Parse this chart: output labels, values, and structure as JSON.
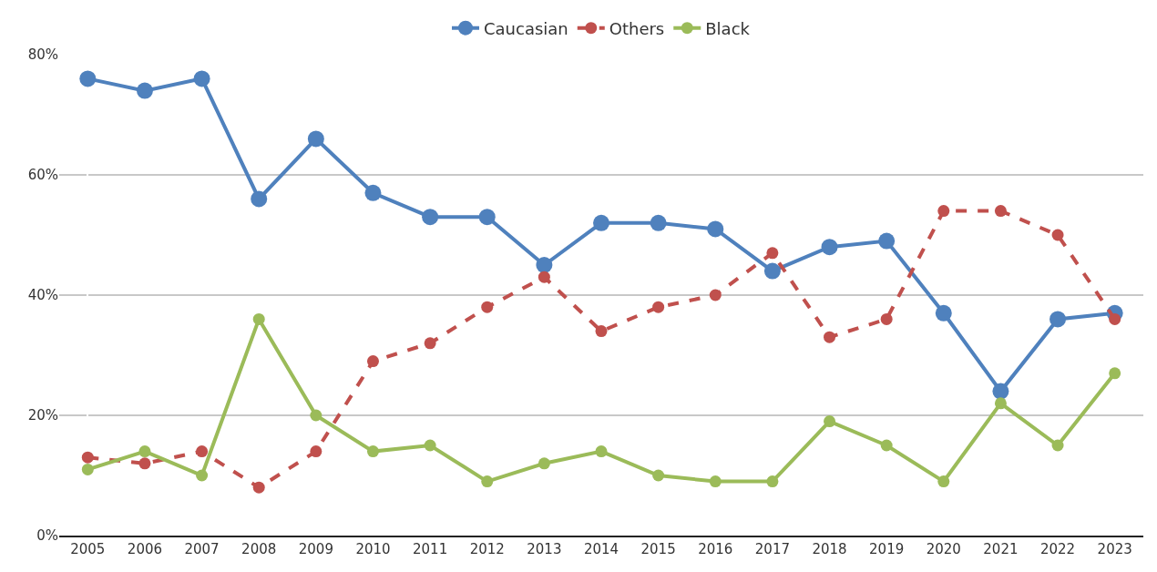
{
  "chart_data": {
    "type": "line",
    "categories": [
      "2005",
      "2006",
      "2007",
      "2008",
      "2009",
      "2010",
      "2011",
      "2012",
      "2013",
      "2014",
      "2015",
      "2016",
      "2017",
      "2018",
      "2019",
      "2020",
      "2021",
      "2022",
      "2023"
    ],
    "series": [
      {
        "name": "Caucasian",
        "color": "#4f81bd",
        "line_style": "solid",
        "values": [
          76,
          74,
          76,
          56,
          66,
          57,
          53,
          53,
          45,
          52,
          52,
          51,
          44,
          48,
          49,
          37,
          24,
          36,
          37
        ]
      },
      {
        "name": "Others",
        "color": "#c0504d",
        "line_style": "dashed",
        "values": [
          13,
          12,
          14,
          8,
          14,
          29,
          32,
          38,
          43,
          34,
          38,
          40,
          47,
          33,
          36,
          54,
          54,
          50,
          36
        ]
      },
      {
        "name": "Black",
        "color": "#9bbb59",
        "line_style": "solid",
        "values": [
          11,
          14,
          10,
          36,
          20,
          14,
          15,
          9,
          12,
          14,
          10,
          9,
          9,
          19,
          15,
          9,
          22,
          15,
          27
        ]
      }
    ],
    "ylim": [
      0,
      80
    ],
    "yticks": [
      {
        "value": 0,
        "label": "0%"
      },
      {
        "value": 20,
        "label": "20%"
      },
      {
        "value": 40,
        "label": "40%"
      },
      {
        "value": 60,
        "label": "60%"
      },
      {
        "value": 80,
        "label": "80%"
      }
    ],
    "grid": "y",
    "legend": "top",
    "marker": "circle"
  }
}
